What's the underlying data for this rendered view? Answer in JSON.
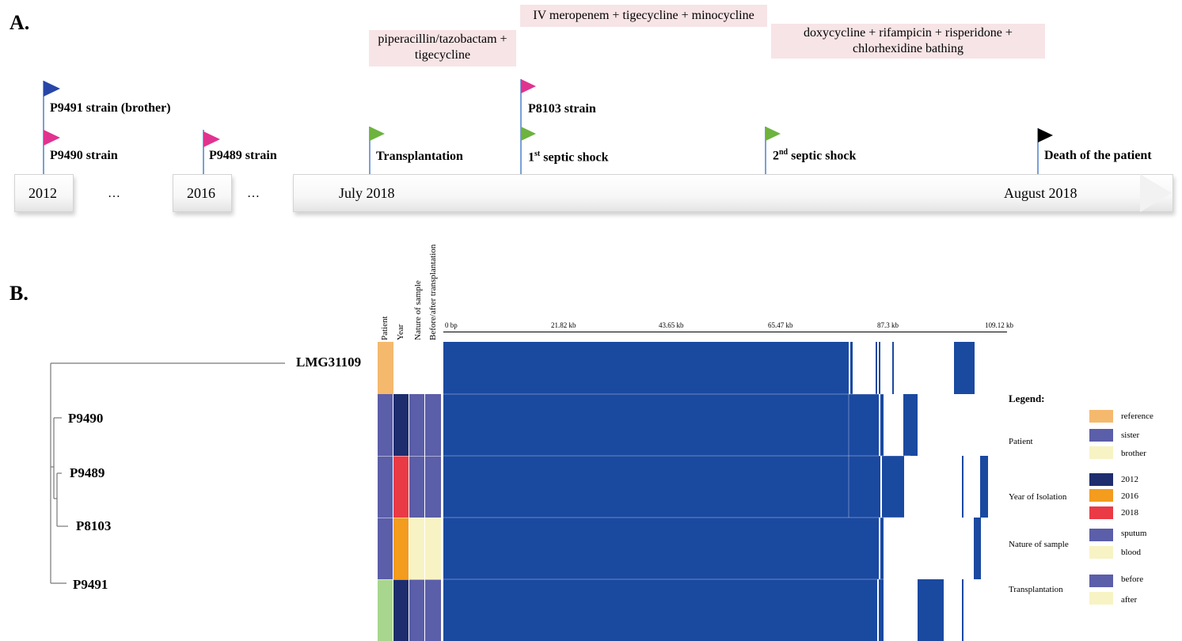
{
  "panel_a": {
    "label": "A.",
    "treatments": {
      "pip": "piperacillin/tazobactam + tigecycline",
      "iv": "IV meropenem + tigecycline + minocycline",
      "doxy": "doxycycline + rifampicin + risperidone + chlorhexidine bathing"
    },
    "events": {
      "p9491": "P9491 strain (brother)",
      "p9490": "P9490 strain",
      "p9489": "P9489 strain",
      "transplant": "Transplantation",
      "p8103": "P8103 strain",
      "shock1_prefix": "1",
      "shock1_sup": "st",
      "shock1_rest": " septic shock",
      "shock2_prefix": "2",
      "shock2_sup": "nd",
      "shock2_rest": " septic shock",
      "death": "Death of the patient"
    },
    "timeline": {
      "y2012": "2012",
      "y2016": "2016",
      "ellipsis": "…",
      "july": "July 2018",
      "august": "August 2018"
    },
    "colors": {
      "blue_flag": "#2746a8",
      "magenta_flag": "#e0338f",
      "green_flag": "#6db33f",
      "black_flag": "#000000"
    }
  },
  "panel_b": {
    "label": "B.",
    "column_headers": [
      "Patient",
      "Year",
      "Nature of sample",
      "Before/after transplantation"
    ],
    "axis_ticks": [
      "0 bp",
      "21.82 kb",
      "43.65 kb",
      "65.47 kb",
      "87.3 kb",
      "109.12 kb"
    ],
    "taxa": [
      "LMG31109",
      "P9490",
      "P9489",
      "P8103",
      "P9491"
    ],
    "legend": {
      "title": "Legend:",
      "groups": [
        {
          "name": "Patient",
          "items": [
            {
              "label": "reference",
              "color": "#f5b96e"
            },
            {
              "label": "sister",
              "color": "#5b5ea8"
            },
            {
              "label": "brother",
              "color": "#f8f3c4"
            }
          ]
        },
        {
          "name": "Year of Isolation",
          "items": [
            {
              "label": "2012",
              "color": "#1e2d6e"
            },
            {
              "label": "2016",
              "color": "#f39c1e"
            },
            {
              "label": "2018",
              "color": "#ea3a46"
            }
          ]
        },
        {
          "name": "Nature of sample",
          "items": [
            {
              "label": "sputum",
              "color": "#5b5ea8"
            },
            {
              "label": "blood",
              "color": "#f8f3c4"
            }
          ]
        },
        {
          "name": "Transplantation",
          "items": [
            {
              "label": "before",
              "color": "#5b5ea8"
            },
            {
              "label": "after",
              "color": "#f8f3c4"
            }
          ]
        }
      ]
    },
    "colors": {
      "coverage": "#1a49a0",
      "leaf_green": "#a8d68e"
    }
  }
}
